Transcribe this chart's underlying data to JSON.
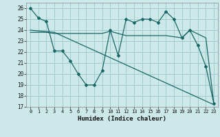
{
  "xlabel": "Humidex (Indice chaleur)",
  "bg_color": "#cce8e8",
  "grid_color": "#a0cccc",
  "line_color": "#1a6666",
  "xlim": [
    -0.5,
    23.5
  ],
  "ylim": [
    17,
    26.5
  ],
  "yticks": [
    17,
    18,
    19,
    20,
    21,
    22,
    23,
    24,
    25,
    26
  ],
  "xticks": [
    0,
    1,
    2,
    3,
    4,
    5,
    6,
    7,
    8,
    9,
    10,
    11,
    12,
    13,
    14,
    15,
    16,
    17,
    18,
    19,
    20,
    21,
    22,
    23
  ],
  "series1_x": [
    0,
    1,
    2,
    3,
    4,
    5,
    6,
    7,
    8,
    9,
    10,
    11,
    12,
    13,
    14,
    15,
    16,
    17,
    18,
    19,
    20,
    21,
    22,
    23
  ],
  "series1_y": [
    26.0,
    25.1,
    24.8,
    22.1,
    22.1,
    21.2,
    20.0,
    19.0,
    19.0,
    20.3,
    24.0,
    21.7,
    25.0,
    24.7,
    25.0,
    25.0,
    24.7,
    25.7,
    25.0,
    23.3,
    24.0,
    22.6,
    20.7,
    17.3
  ],
  "series2_x": [
    0,
    2,
    3,
    9,
    10,
    12,
    14,
    17,
    19,
    20,
    22,
    23
  ],
  "series2_y": [
    23.8,
    23.8,
    23.7,
    23.7,
    23.9,
    23.5,
    23.5,
    23.5,
    23.3,
    24.0,
    23.3,
    17.3
  ],
  "series3_x": [
    0,
    3,
    23
  ],
  "series3_y": [
    24.0,
    23.8,
    17.2
  ]
}
